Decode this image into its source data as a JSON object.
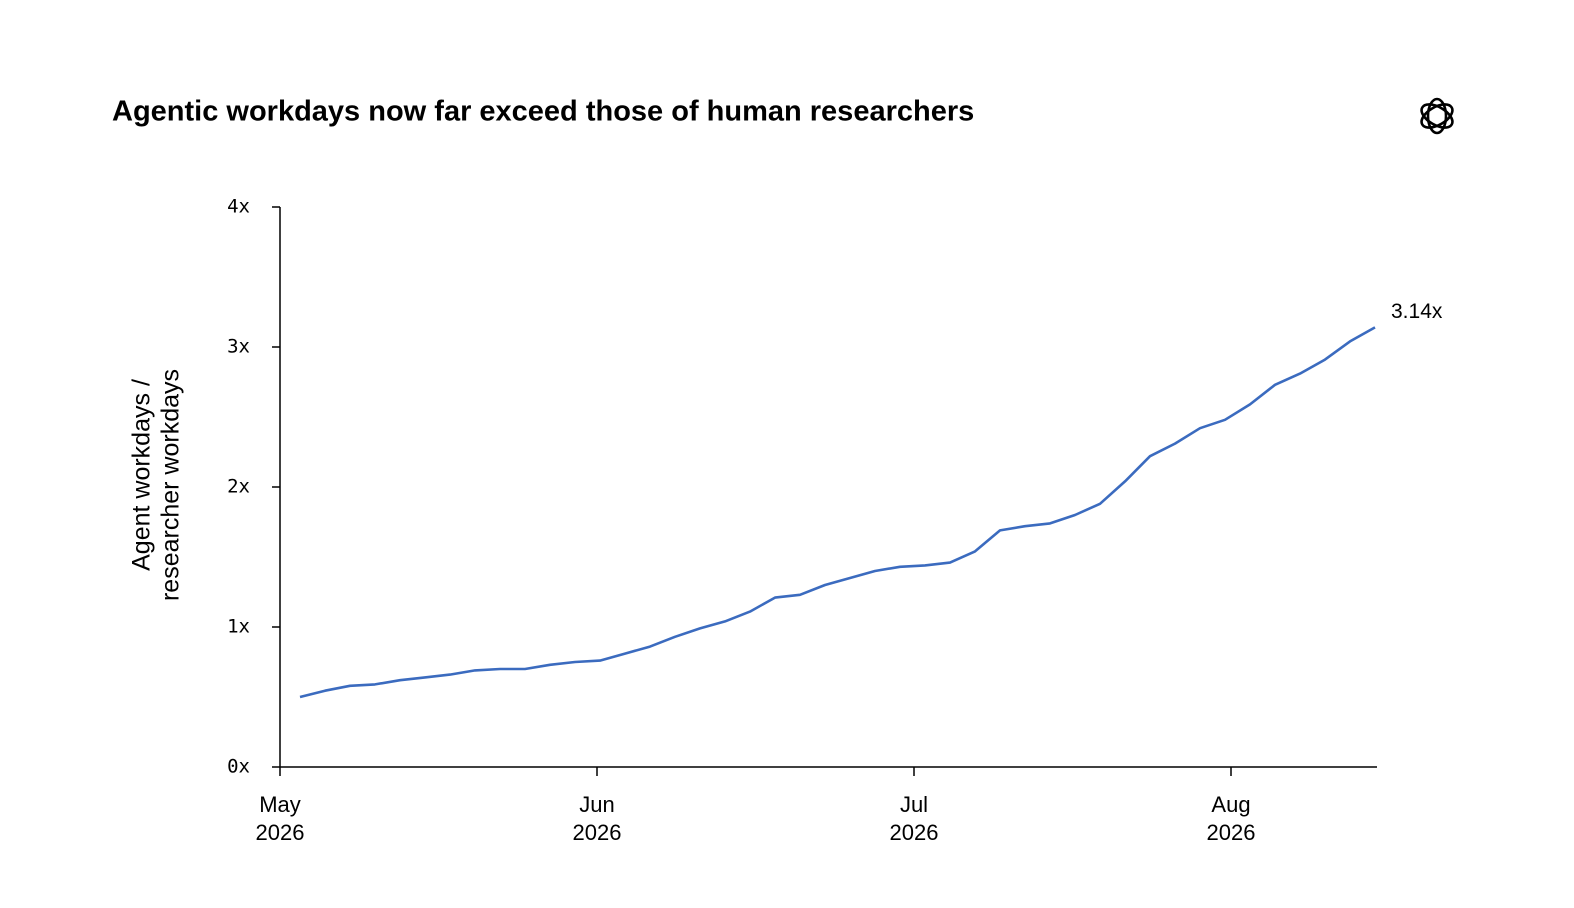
{
  "chart_data": {
    "type": "line",
    "title": "Agentic workdays now far exceed those of human researchers",
    "y_label": [
      "Agent workdays /",
      "researcher workdays"
    ],
    "ylim": [
      0,
      4
    ],
    "yticks": [
      {
        "value": 0,
        "label": "0x"
      },
      {
        "value": 1,
        "label": "1x"
      },
      {
        "value": 2,
        "label": "2x"
      },
      {
        "value": 3,
        "label": "3x"
      },
      {
        "value": 4,
        "label": "4x"
      }
    ],
    "xticks": [
      {
        "value": "2026-05",
        "label": [
          "May",
          "2026"
        ]
      },
      {
        "value": "2026-06",
        "label": [
          "Jun",
          "2026"
        ]
      },
      {
        "value": "2026-07",
        "label": [
          "Jul",
          "2026"
        ]
      },
      {
        "value": "2026-08",
        "label": [
          "Aug",
          "2026"
        ]
      }
    ],
    "series": [
      {
        "color": "#3b6bbf",
        "values": [
          0.5,
          0.545,
          0.58,
          0.59,
          0.62,
          0.64,
          0.66,
          0.69,
          0.7,
          0.7,
          0.73,
          0.75,
          0.76,
          0.81,
          0.86,
          0.93,
          0.99,
          1.04,
          1.11,
          1.21,
          1.23,
          1.3,
          1.35,
          1.4,
          1.43,
          1.44,
          1.46,
          1.54,
          1.69,
          1.72,
          1.74,
          1.8,
          1.88,
          2.04,
          2.22,
          2.31,
          2.42,
          2.48,
          2.59,
          2.73,
          2.81,
          2.91,
          3.04,
          3.14
        ],
        "end_label": "3.14x"
      }
    ]
  }
}
